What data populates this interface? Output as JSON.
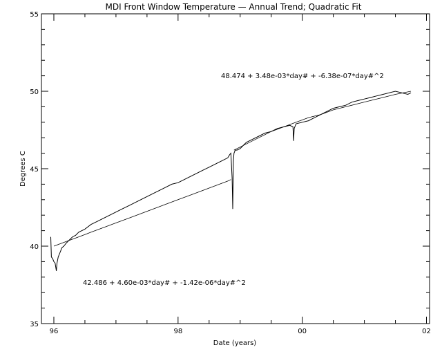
{
  "chart_data": {
    "type": "line",
    "title": "MDI Front Window Temperature — Annual Trend; Quadratic Fit",
    "xlabel": "Date (years)",
    "ylabel": "Degrees C",
    "xlim": [
      1995.8,
      2002.05
    ],
    "ylim": [
      35,
      55
    ],
    "x_ticks": [
      {
        "value": 1996,
        "label": "96"
      },
      {
        "value": 1998,
        "label": "98"
      },
      {
        "value": 2000,
        "label": "00"
      },
      {
        "value": 2002,
        "label": "02"
      }
    ],
    "y_ticks": [
      35,
      40,
      45,
      50,
      55
    ],
    "grid": false,
    "fit_labels": [
      {
        "text": "48.474 +   3.48e-03*day# +  -6.38e-07*day#^2"
      },
      {
        "text": "42.486 +   4.60e-03*day# +  -1.42e-06*day#^2"
      }
    ],
    "series": [
      {
        "x": [
          1995.95,
          1995.96,
          1995.98,
          1996.0,
          1996.02,
          1996.04,
          1996.05,
          1996.07,
          1996.1,
          1996.13,
          1996.16,
          1996.2,
          1996.25,
          1996.3,
          1996.35,
          1996.4,
          1996.5,
          1996.6,
          1996.7,
          1996.8,
          1996.9,
          1997.0,
          1997.1,
          1997.2,
          1997.3,
          1997.4,
          1997.5,
          1997.6,
          1997.7,
          1997.8,
          1997.9,
          1998.0,
          1998.1,
          1998.2,
          1998.3,
          1998.4,
          1998.5,
          1998.6,
          1998.7,
          1998.8,
          1998.83,
          1998.85,
          1998.87,
          1998.88,
          1998.89,
          1998.9,
          1998.91,
          1998.92,
          1998.95,
          1999.0,
          1999.05,
          1999.1,
          1999.2,
          1999.3,
          1999.4,
          1999.5,
          1999.6,
          1999.7,
          1999.8,
          1999.85,
          1999.86,
          1999.87,
          1999.9,
          2000.0,
          2000.1,
          2000.2,
          2000.3,
          2000.4,
          2000.5,
          2000.6,
          2000.7,
          2000.8,
          2000.9,
          2001.0,
          2001.1,
          2001.2,
          2001.3,
          2001.4,
          2001.5,
          2001.6,
          2001.7,
          2001.75
        ],
        "y": [
          40.6,
          39.3,
          39.2,
          39.0,
          38.9,
          38.4,
          38.9,
          39.3,
          39.6,
          39.9,
          40.0,
          40.2,
          40.4,
          40.6,
          40.7,
          40.9,
          41.1,
          41.4,
          41.6,
          41.8,
          42.0,
          42.2,
          42.4,
          42.6,
          42.8,
          43.0,
          43.2,
          43.4,
          43.6,
          43.8,
          44.0,
          44.1,
          44.3,
          44.5,
          44.7,
          44.9,
          45.1,
          45.3,
          45.5,
          45.7,
          45.9,
          46.0,
          44.4,
          42.4,
          45.5,
          46.0,
          46.1,
          46.2,
          46.2,
          46.3,
          46.5,
          46.7,
          46.9,
          47.1,
          47.3,
          47.4,
          47.6,
          47.7,
          47.8,
          47.7,
          46.8,
          47.6,
          47.9,
          48.0,
          48.1,
          48.3,
          48.5,
          48.7,
          48.9,
          49.0,
          49.1,
          49.3,
          49.4,
          49.5,
          49.6,
          49.7,
          49.8,
          49.9,
          50.0,
          49.9,
          49.8,
          49.9
        ]
      }
    ],
    "fit_segments": [
      {
        "x": [
          1996.0,
          1996.2,
          1996.4,
          1996.6,
          1996.8,
          1997.0,
          1997.2,
          1997.4,
          1997.6,
          1997.8,
          1998.0,
          1998.2,
          1998.4,
          1998.6,
          1998.8,
          1998.85
        ],
        "y": [
          40.0,
          40.3,
          40.6,
          40.9,
          41.2,
          41.5,
          41.8,
          42.1,
          42.4,
          42.7,
          43.0,
          43.3,
          43.6,
          43.9,
          44.2,
          44.3
        ]
      },
      {
        "x": [
          1998.9,
          1999.1,
          1999.3,
          1999.5,
          1999.7,
          1999.9,
          2000.1,
          2000.3,
          2000.5,
          2000.7,
          2000.9,
          2001.1,
          2001.3,
          2001.5,
          2001.75
        ],
        "y": [
          46.2,
          46.6,
          47.0,
          47.4,
          47.7,
          48.0,
          48.3,
          48.5,
          48.8,
          49.0,
          49.2,
          49.4,
          49.6,
          49.8,
          50.0
        ]
      }
    ]
  }
}
